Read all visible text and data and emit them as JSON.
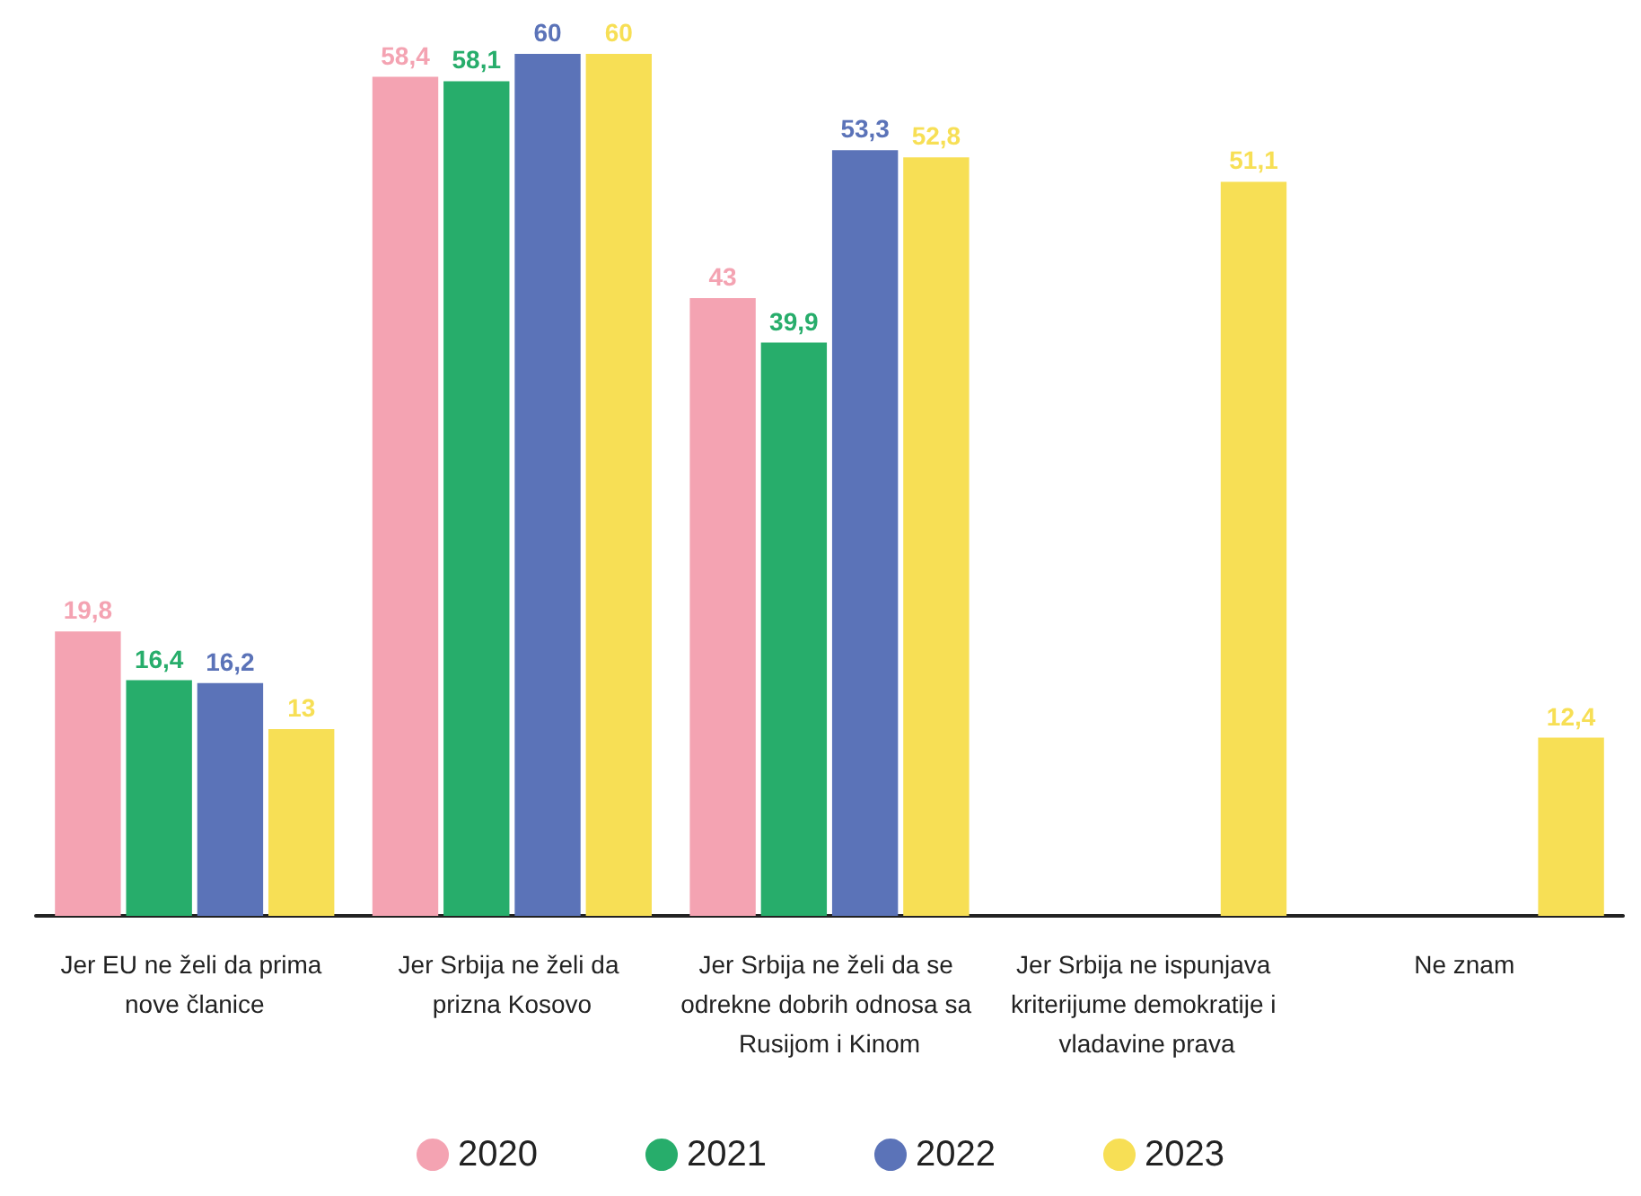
{
  "chart_data": {
    "type": "bar",
    "categories": [
      "Jer EU ne želi da prima nove članice",
      "Jer Srbija ne želi da prizna Kosovo",
      "Jer Srbija ne želi da se odrekne dobrih odnosa sa Rusijom i Kinom",
      "Jer Srbija ne ispunjava kriterijume demokratije i vladavine prava",
      "Ne znam"
    ],
    "series": [
      {
        "name": "2020",
        "color": "#f4a3b2",
        "values": [
          19.8,
          58.4,
          43,
          null,
          null
        ],
        "value_labels": [
          "19,8",
          "58,4",
          "43",
          null,
          null
        ]
      },
      {
        "name": "2021",
        "color": "#27ad6b",
        "values": [
          16.4,
          58.1,
          39.9,
          null,
          null
        ],
        "value_labels": [
          "16,4",
          "58,1",
          "39,9",
          null,
          null
        ]
      },
      {
        "name": "2022",
        "color": "#5b73b8",
        "values": [
          16.2,
          60,
          53.3,
          null,
          null
        ],
        "value_labels": [
          "16,2",
          "60",
          "53,3",
          null,
          null
        ]
      },
      {
        "name": "2023",
        "color": "#f7df55",
        "values": [
          13,
          60,
          52.8,
          51.1,
          12.4
        ],
        "value_labels": [
          "13",
          "60",
          "52,8",
          "51,1",
          "12,4"
        ]
      }
    ],
    "grid": false,
    "legend": "bottom"
  }
}
